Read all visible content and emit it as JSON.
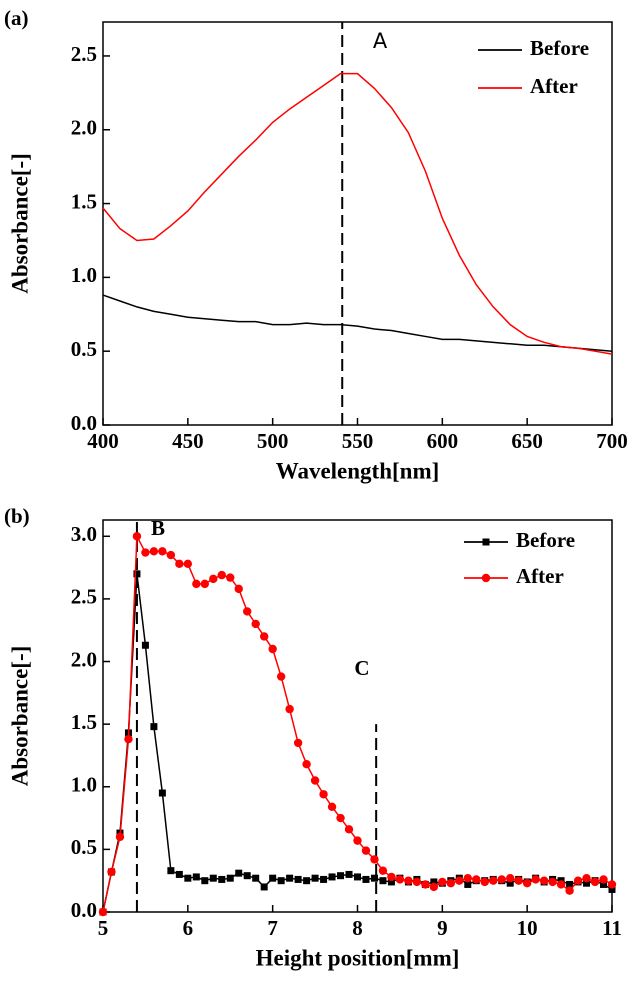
{
  "chart_data": [
    {
      "type": "line",
      "panel_label": "(a)",
      "xlabel": "Wavelength[nm]",
      "ylabel": "Absorbance[-]",
      "xlim": [
        400,
        700
      ],
      "ylim": [
        0,
        2.73
      ],
      "xticks": [
        400,
        450,
        500,
        550,
        600,
        650,
        700
      ],
      "yticks": [
        {
          "value": 0,
          "label": "0.0"
        },
        0.5,
        {
          "value": 1,
          "label": "1.0"
        },
        1.5,
        {
          "value": 2,
          "label": "2.0"
        },
        2.5
      ],
      "x": [
        400,
        410,
        420,
        430,
        440,
        450,
        460,
        470,
        480,
        490,
        500,
        510,
        520,
        530,
        540,
        550,
        560,
        570,
        580,
        590,
        600,
        610,
        620,
        630,
        640,
        650,
        660,
        670,
        680,
        690,
        700
      ],
      "series": [
        {
          "name": "Before",
          "color": "#000000",
          "marker": "none",
          "values": [
            0.88,
            0.84,
            0.8,
            0.77,
            0.75,
            0.73,
            0.72,
            0.71,
            0.7,
            0.7,
            0.68,
            0.68,
            0.69,
            0.68,
            0.68,
            0.67,
            0.65,
            0.64,
            0.62,
            0.6,
            0.58,
            0.58,
            0.57,
            0.56,
            0.55,
            0.54,
            0.54,
            0.53,
            0.52,
            0.51,
            0.5
          ]
        },
        {
          "name": "After",
          "color": "#ff0000",
          "marker": "none",
          "values": [
            1.47,
            1.33,
            1.25,
            1.26,
            1.35,
            1.45,
            1.58,
            1.7,
            1.82,
            1.93,
            2.05,
            2.14,
            2.22,
            2.3,
            2.38,
            2.38,
            2.28,
            2.15,
            1.98,
            1.72,
            1.4,
            1.15,
            0.95,
            0.8,
            0.68,
            0.6,
            0.56,
            0.53,
            0.52,
            0.5,
            0.48
          ]
        }
      ],
      "ref_lines": [
        {
          "x": 541,
          "ymax": 2.73,
          "label": "A"
        }
      ]
    },
    {
      "type": "line",
      "panel_label": "(b)",
      "xlabel": "Height position[mm]",
      "ylabel": "Absorbance[-]",
      "xlim": [
        5,
        11
      ],
      "ylim": [
        0,
        3.13
      ],
      "xticks": [
        5,
        6,
        7,
        8,
        9,
        10,
        11
      ],
      "yticks": [
        {
          "value": 0,
          "label": "0.0"
        },
        0.5,
        {
          "value": 1,
          "label": "1.0"
        },
        1.5,
        {
          "value": 2,
          "label": "2.0"
        },
        2.5,
        {
          "value": 3,
          "label": "3.0"
        }
      ],
      "x": [
        5.0,
        5.1,
        5.2,
        5.3,
        5.4,
        5.5,
        5.6,
        5.7,
        5.8,
        5.9,
        6.0,
        6.1,
        6.2,
        6.3,
        6.4,
        6.5,
        6.6,
        6.7,
        6.8,
        6.9,
        7.0,
        7.1,
        7.2,
        7.3,
        7.4,
        7.5,
        7.6,
        7.7,
        7.8,
        7.9,
        8.0,
        8.1,
        8.2,
        8.3,
        8.4,
        8.5,
        8.6,
        8.7,
        8.8,
        8.9,
        9.0,
        9.1,
        9.2,
        9.3,
        9.4,
        9.5,
        9.6,
        9.7,
        9.8,
        9.9,
        10.0,
        10.1,
        10.2,
        10.3,
        10.4,
        10.5,
        10.6,
        10.7,
        10.8,
        10.9,
        11.0
      ],
      "series": [
        {
          "name": "Before",
          "color": "#000000",
          "marker": "square",
          "values": [
            0,
            0.32,
            0.63,
            1.43,
            2.7,
            2.13,
            1.48,
            0.95,
            0.33,
            0.3,
            0.27,
            0.28,
            0.25,
            0.27,
            0.26,
            0.27,
            0.31,
            0.29,
            0.27,
            0.2,
            0.27,
            0.25,
            0.27,
            0.26,
            0.25,
            0.27,
            0.26,
            0.28,
            0.29,
            0.3,
            0.28,
            0.26,
            0.27,
            0.25,
            0.24,
            0.27,
            0.24,
            0.26,
            0.22,
            0.24,
            0.23,
            0.25,
            0.27,
            0.22,
            0.25,
            0.25,
            0.26,
            0.25,
            0.23,
            0.26,
            0.24,
            0.27,
            0.24,
            0.26,
            0.25,
            0.22,
            0.24,
            0.23,
            0.25,
            0.22,
            0.18
          ]
        },
        {
          "name": "After",
          "color": "#ff0000",
          "marker": "circle",
          "values": [
            0,
            0.32,
            0.6,
            1.38,
            3.0,
            2.87,
            2.88,
            2.88,
            2.85,
            2.78,
            2.78,
            2.62,
            2.62,
            2.66,
            2.69,
            2.67,
            2.58,
            2.4,
            2.3,
            2.2,
            2.1,
            1.88,
            1.62,
            1.35,
            1.18,
            1.05,
            0.94,
            0.84,
            0.75,
            0.66,
            0.57,
            0.49,
            0.42,
            0.33,
            0.28,
            0.26,
            0.25,
            0.24,
            0.22,
            0.2,
            0.24,
            0.23,
            0.25,
            0.27,
            0.26,
            0.24,
            0.25,
            0.26,
            0.27,
            0.25,
            0.23,
            0.26,
            0.25,
            0.24,
            0.22,
            0.17,
            0.25,
            0.27,
            0.24,
            0.26,
            0.22
          ]
        }
      ],
      "ref_lines": [
        {
          "x": 5.4,
          "ymax": 3.13,
          "label": "B"
        },
        {
          "x": 8.22,
          "ymax": 1.5,
          "label": "C"
        }
      ]
    }
  ]
}
